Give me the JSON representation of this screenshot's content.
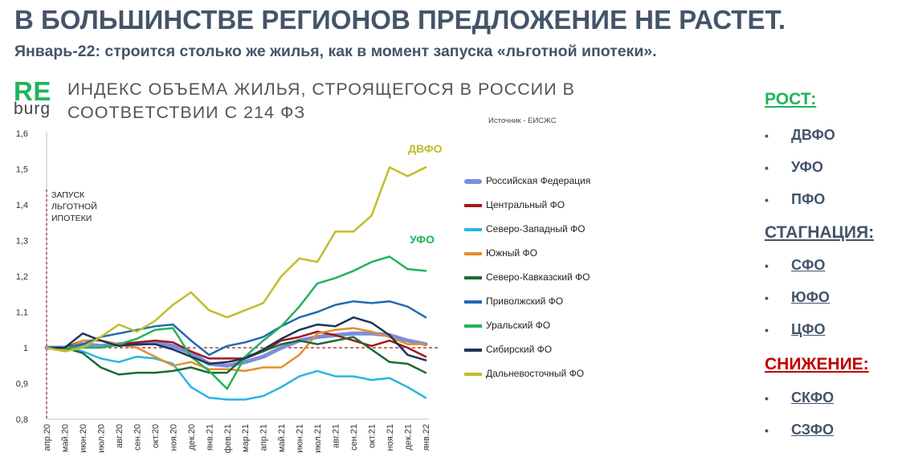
{
  "slide": {
    "title": "В БОЛЬШИНСТВЕ РЕГИОНОВ ПРЕДЛОЖЕНИЕ НЕ РАСТЕТ.",
    "subtitle": "Январь-22: строится столько же жилья, как в момент запуска «льготной ипотеки»."
  },
  "logo": {
    "top": "RE",
    "bottom": "burg"
  },
  "chart_title": "ИНДЕКС ОБЪЕМА ЖИЛЬЯ, СТРОЯЩЕГОСЯ В РОССИИ В СООТВЕТСТВИИ С 214 ФЗ",
  "source": "Источник - ЕИСЖС",
  "chart_data": {
    "type": "line",
    "categories": [
      "апр.20",
      "май.20",
      "июн.20",
      "июл.20",
      "авг.20",
      "сен.20",
      "окт.20",
      "ноя.20",
      "дек.20",
      "янв.21",
      "фев.21",
      "мар.21",
      "апр.21",
      "май.21",
      "июн.21",
      "июл.21",
      "авг.21",
      "сен.21",
      "окт.21",
      "ноя.21",
      "дек.21",
      "янв.22"
    ],
    "ylim": [
      0.8,
      1.6
    ],
    "yticks": [
      0.8,
      0.9,
      1,
      1.1,
      1.2,
      1.3,
      1.4,
      1.5,
      1.6
    ],
    "ytick_labels": [
      "0,8",
      "0,9",
      "1",
      "1,1",
      "1,2",
      "1,3",
      "1,4",
      "1,5",
      "1,6"
    ],
    "reference_line": 1,
    "annotation": {
      "lines": [
        "ЗАПУСК",
        "ЛЬГОТНОЙ",
        "ИПОТЕКИ"
      ],
      "x_index": 0
    },
    "end_labels": [
      {
        "text": "ДВФО",
        "series": 8,
        "color": "#c2bc2c"
      },
      {
        "text": "УФО",
        "series": 6,
        "color": "#1fb45a"
      }
    ],
    "series": [
      {
        "name": "Российская Федерация",
        "color": "#7b8fdc",
        "width": 5,
        "values": [
          1.0,
          1.0,
          1.01,
          1.005,
          1.01,
          1.01,
          1.015,
          1.005,
          0.985,
          0.955,
          0.95,
          0.96,
          0.975,
          1.0,
          1.02,
          1.03,
          1.035,
          1.04,
          1.04,
          1.035,
          1.02,
          1.01
        ]
      },
      {
        "name": "Центральный ФО",
        "color": "#a3171c",
        "width": 2.5,
        "values": [
          1.0,
          1.0,
          1.02,
          1.02,
          1.01,
          1.015,
          1.02,
          1.015,
          0.99,
          0.97,
          0.97,
          0.97,
          0.99,
          1.02,
          1.03,
          1.045,
          1.035,
          1.02,
          1.005,
          1.02,
          1.0,
          0.975
        ]
      },
      {
        "name": "Северо-Западный ФО",
        "color": "#2ab4e3",
        "width": 2.5,
        "values": [
          1.0,
          1.0,
          0.99,
          0.97,
          0.96,
          0.975,
          0.97,
          0.955,
          0.89,
          0.86,
          0.855,
          0.855,
          0.865,
          0.89,
          0.92,
          0.935,
          0.92,
          0.92,
          0.91,
          0.915,
          0.89,
          0.86
        ]
      },
      {
        "name": "Южный ФО",
        "color": "#e58e2b",
        "width": 2.5,
        "values": [
          1.0,
          0.995,
          1.02,
          1.02,
          1.01,
          1.0,
          0.975,
          0.95,
          0.96,
          0.94,
          0.94,
          0.935,
          0.945,
          0.945,
          0.98,
          1.04,
          1.05,
          1.055,
          1.045,
          1.03,
          1.01,
          1.01
        ]
      },
      {
        "name": "Северо-Кавказский ФО",
        "color": "#1c6b34",
        "width": 2.5,
        "values": [
          1.0,
          1.0,
          0.985,
          0.945,
          0.925,
          0.93,
          0.93,
          0.935,
          0.945,
          0.93,
          0.93,
          0.975,
          0.99,
          1.01,
          1.02,
          1.01,
          1.02,
          1.03,
          0.995,
          0.96,
          0.955,
          0.93
        ]
      },
      {
        "name": "Приволжский ФО",
        "color": "#1f6ab0",
        "width": 2.5,
        "values": [
          1.0,
          1.0,
          1.01,
          1.03,
          1.04,
          1.05,
          1.06,
          1.065,
          1.02,
          0.98,
          1.005,
          1.015,
          1.03,
          1.06,
          1.085,
          1.1,
          1.12,
          1.13,
          1.125,
          1.13,
          1.115,
          1.085
        ]
      },
      {
        "name": "Уральский ФО",
        "color": "#22b35c",
        "width": 2.5,
        "values": [
          1.0,
          1.0,
          1.0,
          1.0,
          1.01,
          1.025,
          1.05,
          1.055,
          0.975,
          0.935,
          0.885,
          0.975,
          1.02,
          1.06,
          1.115,
          1.18,
          1.195,
          1.215,
          1.24,
          1.255,
          1.22,
          1.215
        ]
      },
      {
        "name": "Сибирский ФО",
        "color": "#1d3557",
        "width": 2.5,
        "values": [
          1.0,
          1.0,
          1.04,
          1.02,
          1.005,
          1.01,
          1.01,
          0.995,
          0.975,
          0.955,
          0.96,
          0.97,
          0.995,
          1.025,
          1.05,
          1.065,
          1.06,
          1.085,
          1.07,
          1.035,
          0.98,
          0.965
        ]
      },
      {
        "name": "Дальневосточный ФО",
        "color": "#c2bc2c",
        "width": 2.5,
        "values": [
          1.0,
          0.99,
          1.0,
          1.03,
          1.065,
          1.045,
          1.075,
          1.12,
          1.155,
          1.105,
          1.085,
          1.105,
          1.125,
          1.2,
          1.25,
          1.24,
          1.325,
          1.325,
          1.37,
          1.505,
          1.48,
          1.505
        ]
      }
    ]
  },
  "sidebar": {
    "groups": [
      {
        "heading": "РОСТ:",
        "color": "#1fb45a",
        "items": [
          "ДВФО",
          "УФО",
          "ПФО"
        ],
        "linked": false
      },
      {
        "heading": "СТАГНАЦИЯ:",
        "color": "#44546a",
        "items": [
          "СФО",
          "ЮФО",
          "ЦФО"
        ],
        "linked": true
      },
      {
        "heading": "СНИЖЕНИЕ:",
        "color": "#c00000",
        "items": [
          "СКФО",
          "СЗФО"
        ],
        "linked": true
      }
    ],
    "bullet": "•"
  }
}
